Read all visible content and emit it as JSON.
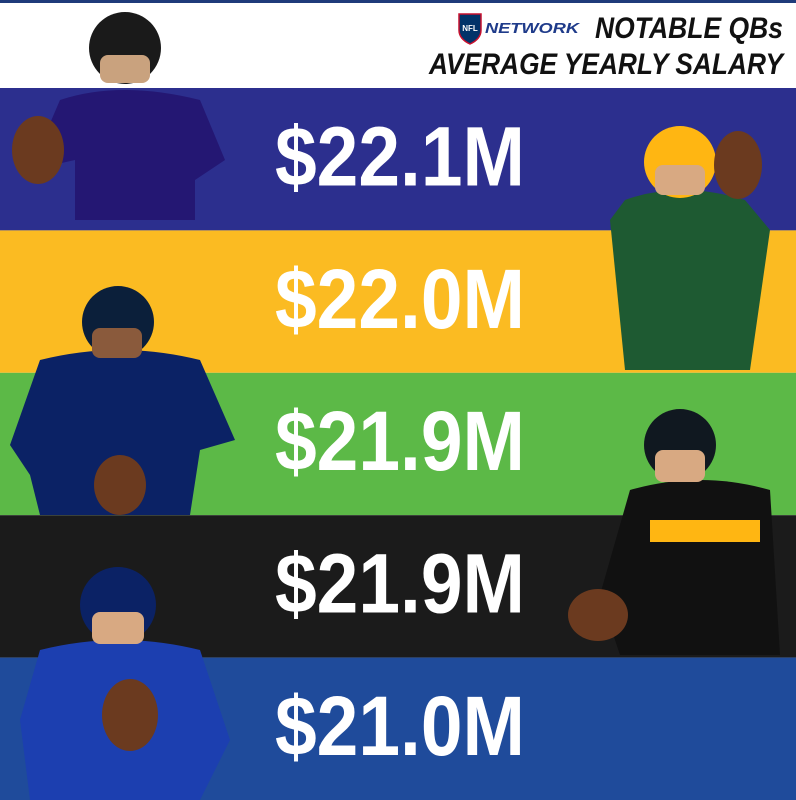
{
  "header": {
    "logo": "NFL",
    "network": "NETWORK",
    "title_line1": "NOTABLE QBs",
    "title_line2": "AVERAGE YEARLY SALARY"
  },
  "bands": [
    {
      "label": "$22.1M",
      "color": "#2c2f8e"
    },
    {
      "label": "$22.0M",
      "color": "#fbbb22"
    },
    {
      "label": "$21.9M",
      "color": "#5cb947"
    },
    {
      "label": "$21.9M",
      "color": "#1b1b1b"
    },
    {
      "label": "$21.0M",
      "color": "#1f4b9b"
    }
  ]
}
